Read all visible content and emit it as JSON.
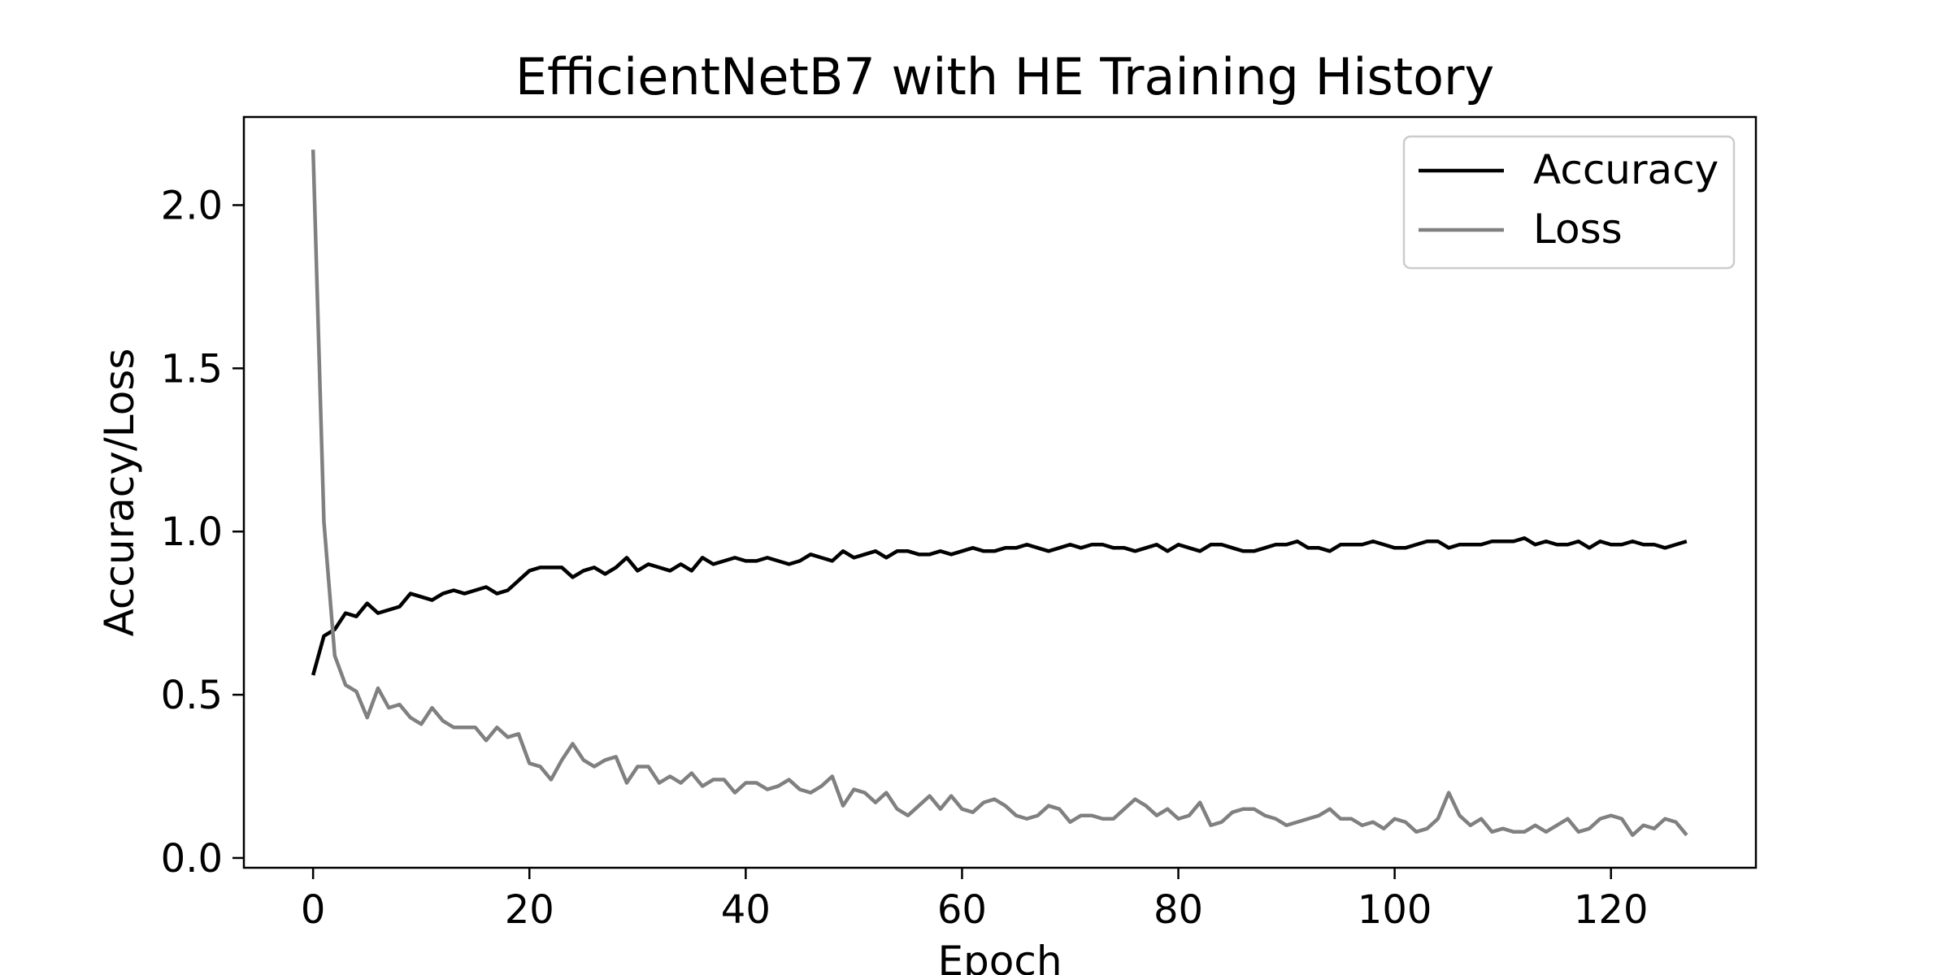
{
  "chart_data": {
    "type": "line",
    "title": "EfficientNetB7 with HE Training History",
    "xlabel": "Epoch",
    "ylabel": "Accuracy/Loss",
    "xlim": [
      -6.4,
      133.4
    ],
    "ylim": [
      -0.03,
      2.27
    ],
    "xticks": [
      0,
      20,
      40,
      60,
      80,
      100,
      120
    ],
    "yticks": [
      0.0,
      0.5,
      1.0,
      1.5,
      2.0
    ],
    "xtick_labels": [
      "0",
      "20",
      "40",
      "60",
      "80",
      "100",
      "120"
    ],
    "ytick_labels": [
      "0.0",
      "0.5",
      "1.0",
      "1.5",
      "2.0"
    ],
    "grid": false,
    "legend_position": "top-right",
    "series": [
      {
        "name": "Accuracy",
        "color": "#000000",
        "x_start": 0,
        "values": [
          0.56,
          0.68,
          0.7,
          0.75,
          0.74,
          0.78,
          0.75,
          0.76,
          0.77,
          0.81,
          0.8,
          0.79,
          0.81,
          0.82,
          0.81,
          0.82,
          0.83,
          0.81,
          0.82,
          0.85,
          0.88,
          0.89,
          0.89,
          0.89,
          0.86,
          0.88,
          0.89,
          0.87,
          0.89,
          0.92,
          0.88,
          0.9,
          0.89,
          0.88,
          0.9,
          0.88,
          0.92,
          0.9,
          0.91,
          0.92,
          0.91,
          0.91,
          0.92,
          0.91,
          0.9,
          0.91,
          0.93,
          0.92,
          0.91,
          0.94,
          0.92,
          0.93,
          0.94,
          0.92,
          0.94,
          0.94,
          0.93,
          0.93,
          0.94,
          0.93,
          0.94,
          0.95,
          0.94,
          0.94,
          0.95,
          0.95,
          0.96,
          0.95,
          0.94,
          0.95,
          0.96,
          0.95,
          0.96,
          0.96,
          0.95,
          0.95,
          0.94,
          0.95,
          0.96,
          0.94,
          0.96,
          0.95,
          0.94,
          0.96,
          0.96,
          0.95,
          0.94,
          0.94,
          0.95,
          0.96,
          0.96,
          0.97,
          0.95,
          0.95,
          0.94,
          0.96,
          0.96,
          0.96,
          0.97,
          0.96,
          0.95,
          0.95,
          0.96,
          0.97,
          0.97,
          0.95,
          0.96,
          0.96,
          0.96,
          0.97,
          0.97,
          0.97,
          0.98,
          0.96,
          0.97,
          0.96,
          0.96,
          0.97,
          0.95,
          0.97,
          0.96,
          0.96,
          0.97,
          0.96,
          0.96,
          0.95,
          0.96,
          0.97
        ]
      },
      {
        "name": "Loss",
        "color": "#808080",
        "x_start": 0,
        "values": [
          2.17,
          1.03,
          0.62,
          0.53,
          0.51,
          0.43,
          0.52,
          0.46,
          0.47,
          0.43,
          0.41,
          0.46,
          0.42,
          0.4,
          0.4,
          0.4,
          0.36,
          0.4,
          0.37,
          0.38,
          0.29,
          0.28,
          0.24,
          0.3,
          0.35,
          0.3,
          0.28,
          0.3,
          0.31,
          0.23,
          0.28,
          0.28,
          0.23,
          0.25,
          0.23,
          0.26,
          0.22,
          0.24,
          0.24,
          0.2,
          0.23,
          0.23,
          0.21,
          0.22,
          0.24,
          0.21,
          0.2,
          0.22,
          0.25,
          0.16,
          0.21,
          0.2,
          0.17,
          0.2,
          0.15,
          0.13,
          0.16,
          0.19,
          0.15,
          0.19,
          0.15,
          0.14,
          0.17,
          0.18,
          0.16,
          0.13,
          0.12,
          0.13,
          0.16,
          0.15,
          0.11,
          0.13,
          0.13,
          0.12,
          0.12,
          0.15,
          0.18,
          0.16,
          0.13,
          0.15,
          0.12,
          0.13,
          0.17,
          0.1,
          0.11,
          0.14,
          0.15,
          0.15,
          0.13,
          0.12,
          0.1,
          0.11,
          0.12,
          0.13,
          0.15,
          0.12,
          0.12,
          0.1,
          0.11,
          0.09,
          0.12,
          0.11,
          0.08,
          0.09,
          0.12,
          0.2,
          0.13,
          0.1,
          0.12,
          0.08,
          0.09,
          0.08,
          0.08,
          0.1,
          0.08,
          0.1,
          0.12,
          0.08,
          0.09,
          0.12,
          0.13,
          0.12,
          0.07,
          0.1,
          0.09,
          0.12,
          0.11,
          0.07
        ]
      }
    ]
  }
}
